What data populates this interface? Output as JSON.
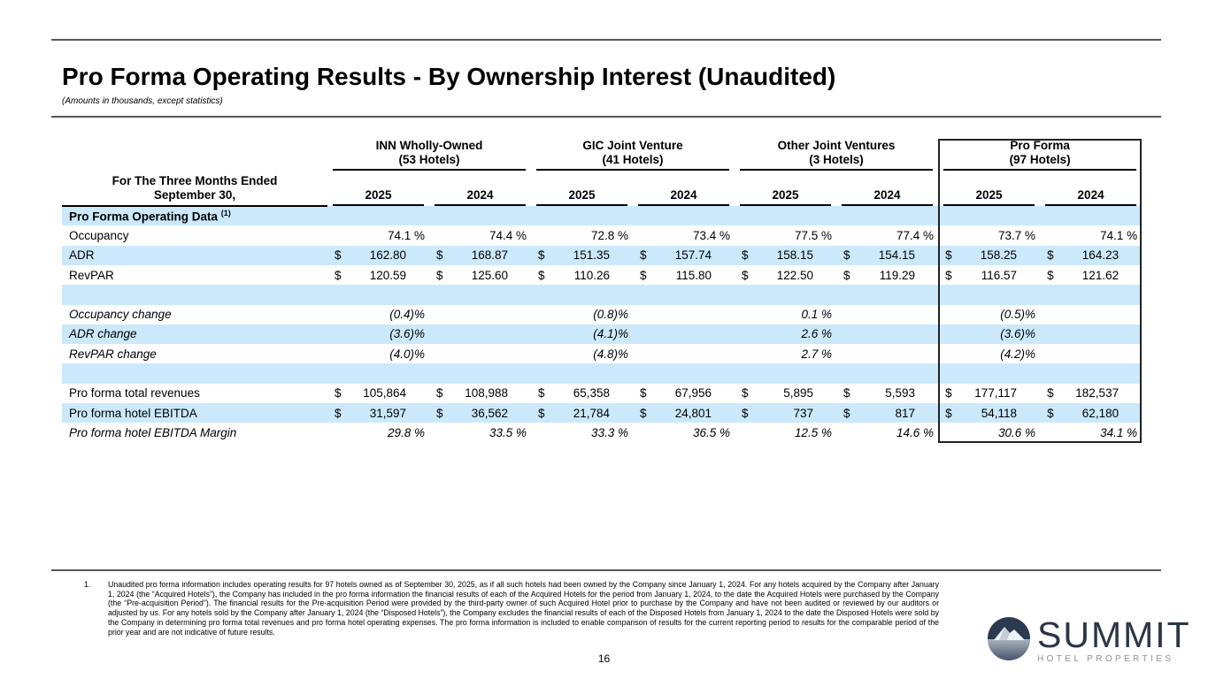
{
  "page": {
    "title": "Pro Forma Operating Results - By Ownership Interest (Unaudited)",
    "subtitle": "(Amounts in thousands, except statistics)",
    "page_number": "16"
  },
  "table": {
    "row_header": [
      "For The Three Months Ended",
      "September 30,"
    ],
    "groups": [
      {
        "name": "INN Wholly-Owned",
        "hotels": "(53 Hotels)",
        "years": [
          "2025",
          "2024"
        ],
        "boxed": false
      },
      {
        "name": "GIC Joint Venture",
        "hotels": "(41 Hotels)",
        "years": [
          "2025",
          "2024"
        ],
        "boxed": false
      },
      {
        "name": "Other Joint Ventures",
        "hotels": "(3 Hotels)",
        "years": [
          "2025",
          "2024"
        ],
        "boxed": false
      },
      {
        "name": "Pro Forma",
        "hotels": "(97 Hotels)",
        "years": [
          "2025",
          "2024"
        ],
        "boxed": true
      }
    ],
    "rows": [
      {
        "type": "section",
        "label": "Pro Forma Operating Data",
        "sup": "(1)"
      },
      {
        "type": "data",
        "label": "Occupancy",
        "italic": false,
        "pad": "pct",
        "cells": [
          [
            "",
            "74.1 %"
          ],
          [
            "",
            "74.4 %"
          ],
          [
            "",
            "72.8 %"
          ],
          [
            "",
            "73.4 %"
          ],
          [
            "",
            "77.5 %"
          ],
          [
            "",
            "77.4 %"
          ],
          [
            "",
            "73.7 %"
          ],
          [
            "",
            "74.1 %"
          ]
        ]
      },
      {
        "type": "data",
        "label": "ADR",
        "italic": false,
        "pad": "money",
        "cells": [
          [
            "$",
            "162.80"
          ],
          [
            "$",
            "168.87"
          ],
          [
            "$",
            "151.35"
          ],
          [
            "$",
            "157.74"
          ],
          [
            "$",
            "158.15"
          ],
          [
            "$",
            "154.15"
          ],
          [
            "$",
            "158.25"
          ],
          [
            "$",
            "164.23"
          ]
        ]
      },
      {
        "type": "data",
        "label": "RevPAR",
        "italic": false,
        "pad": "money",
        "cells": [
          [
            "$",
            "120.59"
          ],
          [
            "$",
            "125.60"
          ],
          [
            "$",
            "110.26"
          ],
          [
            "$",
            "115.80"
          ],
          [
            "$",
            "122.50"
          ],
          [
            "$",
            "119.29"
          ],
          [
            "$",
            "116.57"
          ],
          [
            "$",
            "121.62"
          ]
        ]
      },
      {
        "type": "blank"
      },
      {
        "type": "data",
        "label": "Occupancy change",
        "italic": true,
        "pad": "pct",
        "cells": [
          [
            "",
            "(0.4)%"
          ],
          [
            "",
            ""
          ],
          [
            "",
            "(0.8)%"
          ],
          [
            "",
            ""
          ],
          [
            "",
            "0.1 %"
          ],
          [
            "",
            ""
          ],
          [
            "",
            "(0.5)%"
          ],
          [
            "",
            ""
          ]
        ]
      },
      {
        "type": "data",
        "label": "ADR change",
        "italic": true,
        "pad": "pct",
        "cells": [
          [
            "",
            "(3.6)%"
          ],
          [
            "",
            ""
          ],
          [
            "",
            "(4.1)%"
          ],
          [
            "",
            ""
          ],
          [
            "",
            "2.6 %"
          ],
          [
            "",
            ""
          ],
          [
            "",
            "(3.6)%"
          ],
          [
            "",
            ""
          ]
        ]
      },
      {
        "type": "data",
        "label": "RevPAR change",
        "italic": true,
        "pad": "pct",
        "cells": [
          [
            "",
            "(4.0)%"
          ],
          [
            "",
            ""
          ],
          [
            "",
            "(4.8)%"
          ],
          [
            "",
            ""
          ],
          [
            "",
            "2.7 %"
          ],
          [
            "",
            ""
          ],
          [
            "",
            "(4.2)%"
          ],
          [
            "",
            ""
          ]
        ]
      },
      {
        "type": "blank"
      },
      {
        "type": "data",
        "label": "Pro forma total revenues",
        "italic": false,
        "pad": "money",
        "cells": [
          [
            "$",
            "105,864"
          ],
          [
            "$",
            "108,988"
          ],
          [
            "$",
            "65,358"
          ],
          [
            "$",
            "67,956"
          ],
          [
            "$",
            "5,895"
          ],
          [
            "$",
            "5,593"
          ],
          [
            "$",
            "177,117"
          ],
          [
            "$",
            "182,537"
          ]
        ]
      },
      {
        "type": "data",
        "label": "Pro forma hotel EBITDA",
        "italic": false,
        "pad": "money",
        "cells": [
          [
            "$",
            "31,597"
          ],
          [
            "$",
            "36,562"
          ],
          [
            "$",
            "21,784"
          ],
          [
            "$",
            "24,801"
          ],
          [
            "$",
            "737"
          ],
          [
            "$",
            "817"
          ],
          [
            "$",
            "54,118"
          ],
          [
            "$",
            "62,180"
          ]
        ]
      },
      {
        "type": "data",
        "label": "Pro forma hotel EBITDA Margin",
        "italic": true,
        "pad": "pct",
        "cells": [
          [
            "",
            "29.8 %"
          ],
          [
            "",
            "33.5 %"
          ],
          [
            "",
            "33.3 %"
          ],
          [
            "",
            "36.5 %"
          ],
          [
            "",
            "12.5 %"
          ],
          [
            "",
            "14.6 %"
          ],
          [
            "",
            "30.6 %"
          ],
          [
            "",
            "34.1 %"
          ]
        ]
      }
    ]
  },
  "footnote": {
    "number": "1.",
    "text": "Unaudited pro forma information includes operating results for 97 hotels owned as of September 30, 2025, as if all such hotels had been owned by the Company since January 1, 2024. For any hotels acquired by the Company after January 1, 2024 (the “Acquired Hotels”), the Company has included in the pro forma information the financial results of each of the Acquired Hotels for the period from January 1, 2024, to the date the Acquired Hotels were purchased by the Company (the “Pre-acquisition Period”). The financial results for the Pre-acquisition Period were provided by the third-party owner of such Acquired Hotel prior to purchase by the Company and have not been audited or reviewed by our auditors or adjusted by us. For any hotels sold by the Company after January 1, 2024 (the “Disposed Hotels”), the Company excludes the financial results of each of the Disposed Hotels from January 1, 2024 to the date the Disposed Hotels were sold by the Company in determining pro forma  total revenues and pro forma hotel operating expenses. The pro forma information is included to enable comparison of results for the current reporting period to results for the comparable period of the prior year and are not indicative of future results."
  },
  "logo": {
    "name": "SUMMIT",
    "tagline": "HOTEL PROPERTIES"
  },
  "colors": {
    "row_highlight": "#cbe9fb",
    "rule_gray": "#57575a",
    "logo_navy": "#2b3645",
    "logo_gray": "#8d939c"
  }
}
